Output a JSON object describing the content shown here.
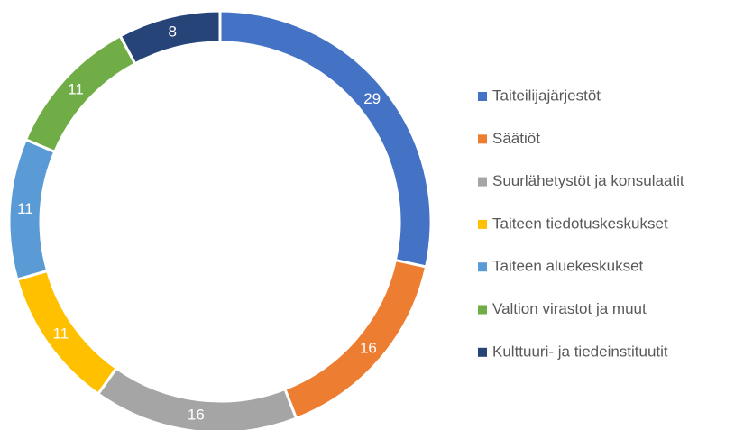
{
  "chart_data": {
    "type": "donut",
    "categories": [
      "Taiteilijajärjestöt",
      "Säätiöt",
      "Suurlähetystöt ja konsulaatit",
      "Taiteen tiedotuskeskukset",
      "Taiteen aluekeskukset",
      "Valtion virastot ja muut",
      "Kulttuuri- ja tiedeinstituutit"
    ],
    "values": [
      29,
      16,
      16,
      11,
      11,
      11,
      8
    ],
    "colors": [
      "#4472c4",
      "#ed7d31",
      "#a5a5a5",
      "#ffc000",
      "#5b9bd5",
      "#70ad47",
      "#264478"
    ],
    "legend": "right"
  }
}
